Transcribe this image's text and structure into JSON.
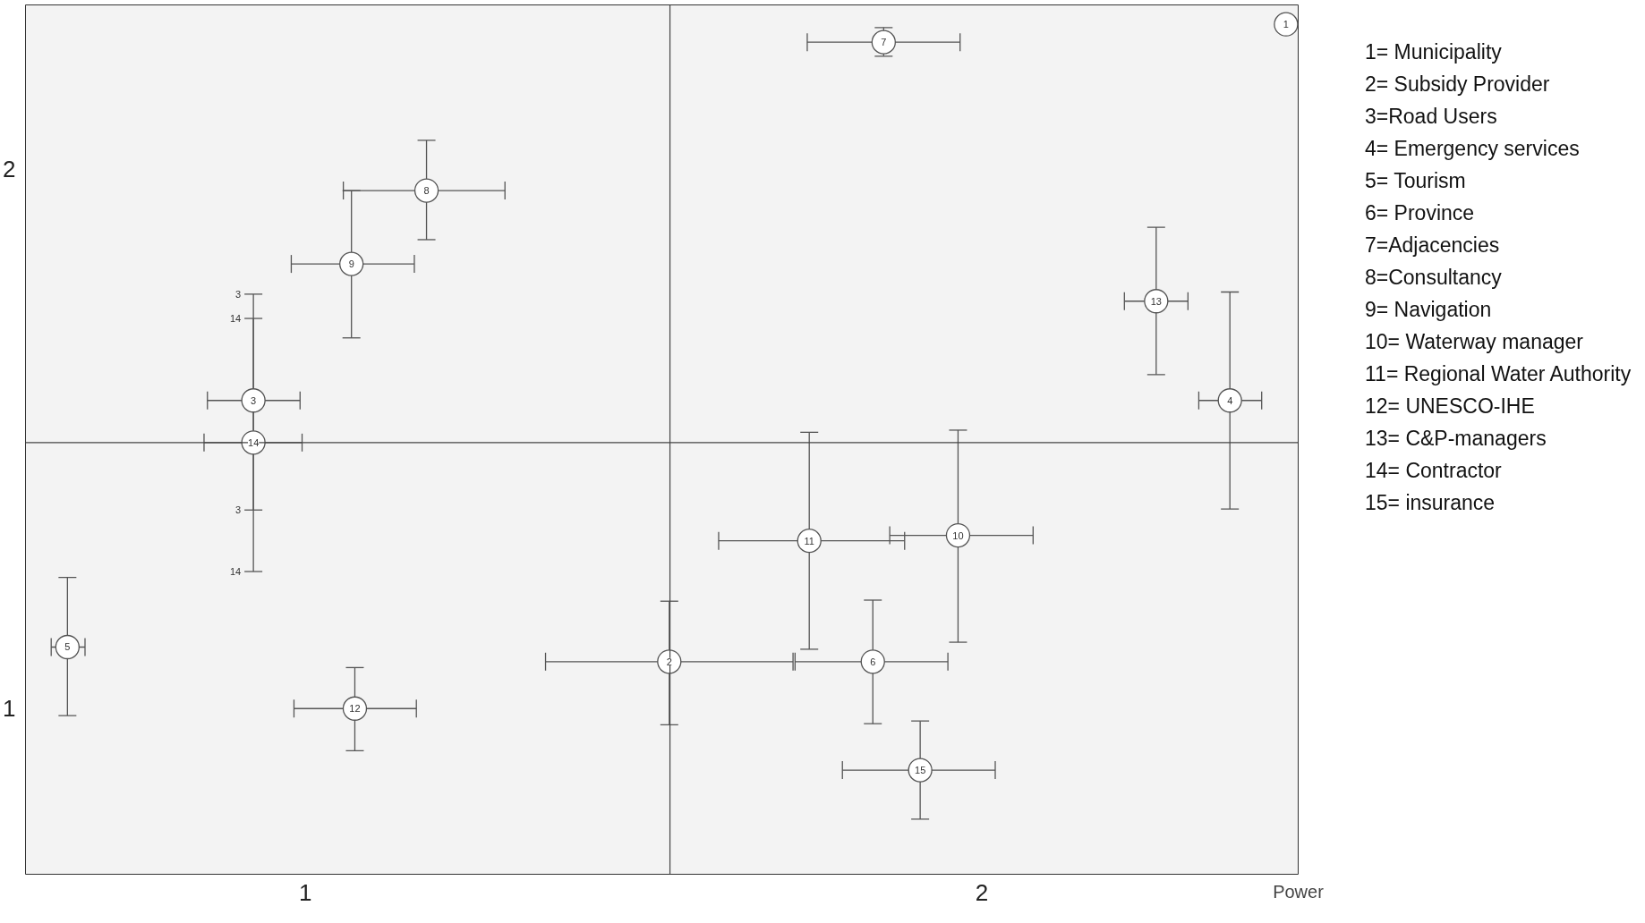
{
  "chart_data": {
    "type": "scatter",
    "xlabel": "Power",
    "x": [
      2.45,
      1.538,
      0.923,
      2.367,
      0.648,
      1.839,
      1.855,
      1.179,
      1.068,
      1.965,
      1.745,
      1.073,
      2.258,
      0.923,
      1.909
    ],
    "values": [
      2.268,
      1.087,
      1.571,
      1.571,
      1.114,
      1.087,
      2.235,
      1.96,
      1.824,
      1.321,
      1.311,
      1.0,
      1.755,
      1.493,
      0.886
    ],
    "errors": [
      null,
      [
        0.97,
        1.199
      ],
      [
        1.368,
        1.768
      ],
      [
        1.37,
        1.772
      ],
      [
        0.987,
        1.243
      ],
      [
        0.972,
        1.201
      ],
      [
        2.209,
        2.262
      ],
      [
        1.869,
        2.053
      ],
      [
        1.687,
        1.96
      ],
      [
        1.123,
        1.516
      ],
      [
        1.11,
        1.512
      ],
      [
        0.922,
        1.076
      ],
      [
        1.619,
        1.892
      ],
      [
        1.254,
        1.723
      ],
      [
        0.795,
        0.977
      ]
    ],
    "xerrors": [
      null,
      [
        1.355,
        1.721
      ],
      [
        0.855,
        0.992
      ],
      [
        2.321,
        2.414
      ],
      [
        0.624,
        0.674
      ],
      [
        1.724,
        1.95
      ],
      [
        1.742,
        1.968
      ],
      [
        1.056,
        1.295
      ],
      [
        0.979,
        1.161
      ],
      [
        1.864,
        2.076
      ],
      [
        1.611,
        1.886
      ],
      [
        0.983,
        1.164
      ],
      [
        2.211,
        2.305
      ],
      [
        0.85,
        0.995
      ],
      [
        1.794,
        2.02
      ]
    ],
    "color": "#555555",
    "marker": "circle",
    "xlim": [
      0.586,
      2.468
    ],
    "ylim": [
      0.693,
      2.304
    ],
    "xticks": [
      1,
      2
    ],
    "yticks": [
      1,
      2
    ],
    "grid": false,
    "legend": false,
    "ref_lines": [
      {
        "axis": "x",
        "value": 1.539,
        "label": null,
        "color": "#444444"
      },
      {
        "axis": "y",
        "value": 1.493,
        "label": null,
        "color": "#444444"
      }
    ],
    "annotations": [
      {
        "text": "1",
        "x": 2.45,
        "y": 2.268
      },
      {
        "text": "2",
        "x": 1.538,
        "y": 1.087
      },
      {
        "text": "3",
        "x": 0.923,
        "y": 1.571
      },
      {
        "text": "4",
        "x": 2.367,
        "y": 1.571
      },
      {
        "text": "5",
        "x": 0.648,
        "y": 1.114
      },
      {
        "text": "6",
        "x": 1.839,
        "y": 1.087
      },
      {
        "text": "7",
        "x": 1.855,
        "y": 2.235
      },
      {
        "text": "8",
        "x": 1.179,
        "y": 1.96
      },
      {
        "text": "9",
        "x": 1.068,
        "y": 1.824
      },
      {
        "text": "10",
        "x": 1.965,
        "y": 1.321
      },
      {
        "text": "11",
        "x": 1.745,
        "y": 1.311
      },
      {
        "text": "12",
        "x": 1.073,
        "y": 1.0
      },
      {
        "text": "13",
        "x": 2.258,
        "y": 1.755
      },
      {
        "text": "14",
        "x": 0.923,
        "y": 1.493
      },
      {
        "text": "15",
        "x": 1.909,
        "y": 0.886
      },
      {
        "text": "3",
        "x": 0.923,
        "y": 1.768
      },
      {
        "text": "14",
        "x": 0.923,
        "y": 1.723
      },
      {
        "text": "3",
        "x": 0.923,
        "y": 1.368
      },
      {
        "text": "14",
        "x": 0.923,
        "y": 1.254
      },
      "1= Municipality",
      "2= Subsidy Provider",
      "3=Road Users",
      "4= Emergency services",
      "5= Tourism",
      "6= Province",
      "7=Adjacencies",
      "8=Consultancy",
      "9= Navigation",
      "10= Waterway manager",
      "11= Regional Water Authority",
      "12= UNESCO-IHE",
      "13= C&P-managers",
      "14= Contractor",
      "15= insurance"
    ]
  }
}
